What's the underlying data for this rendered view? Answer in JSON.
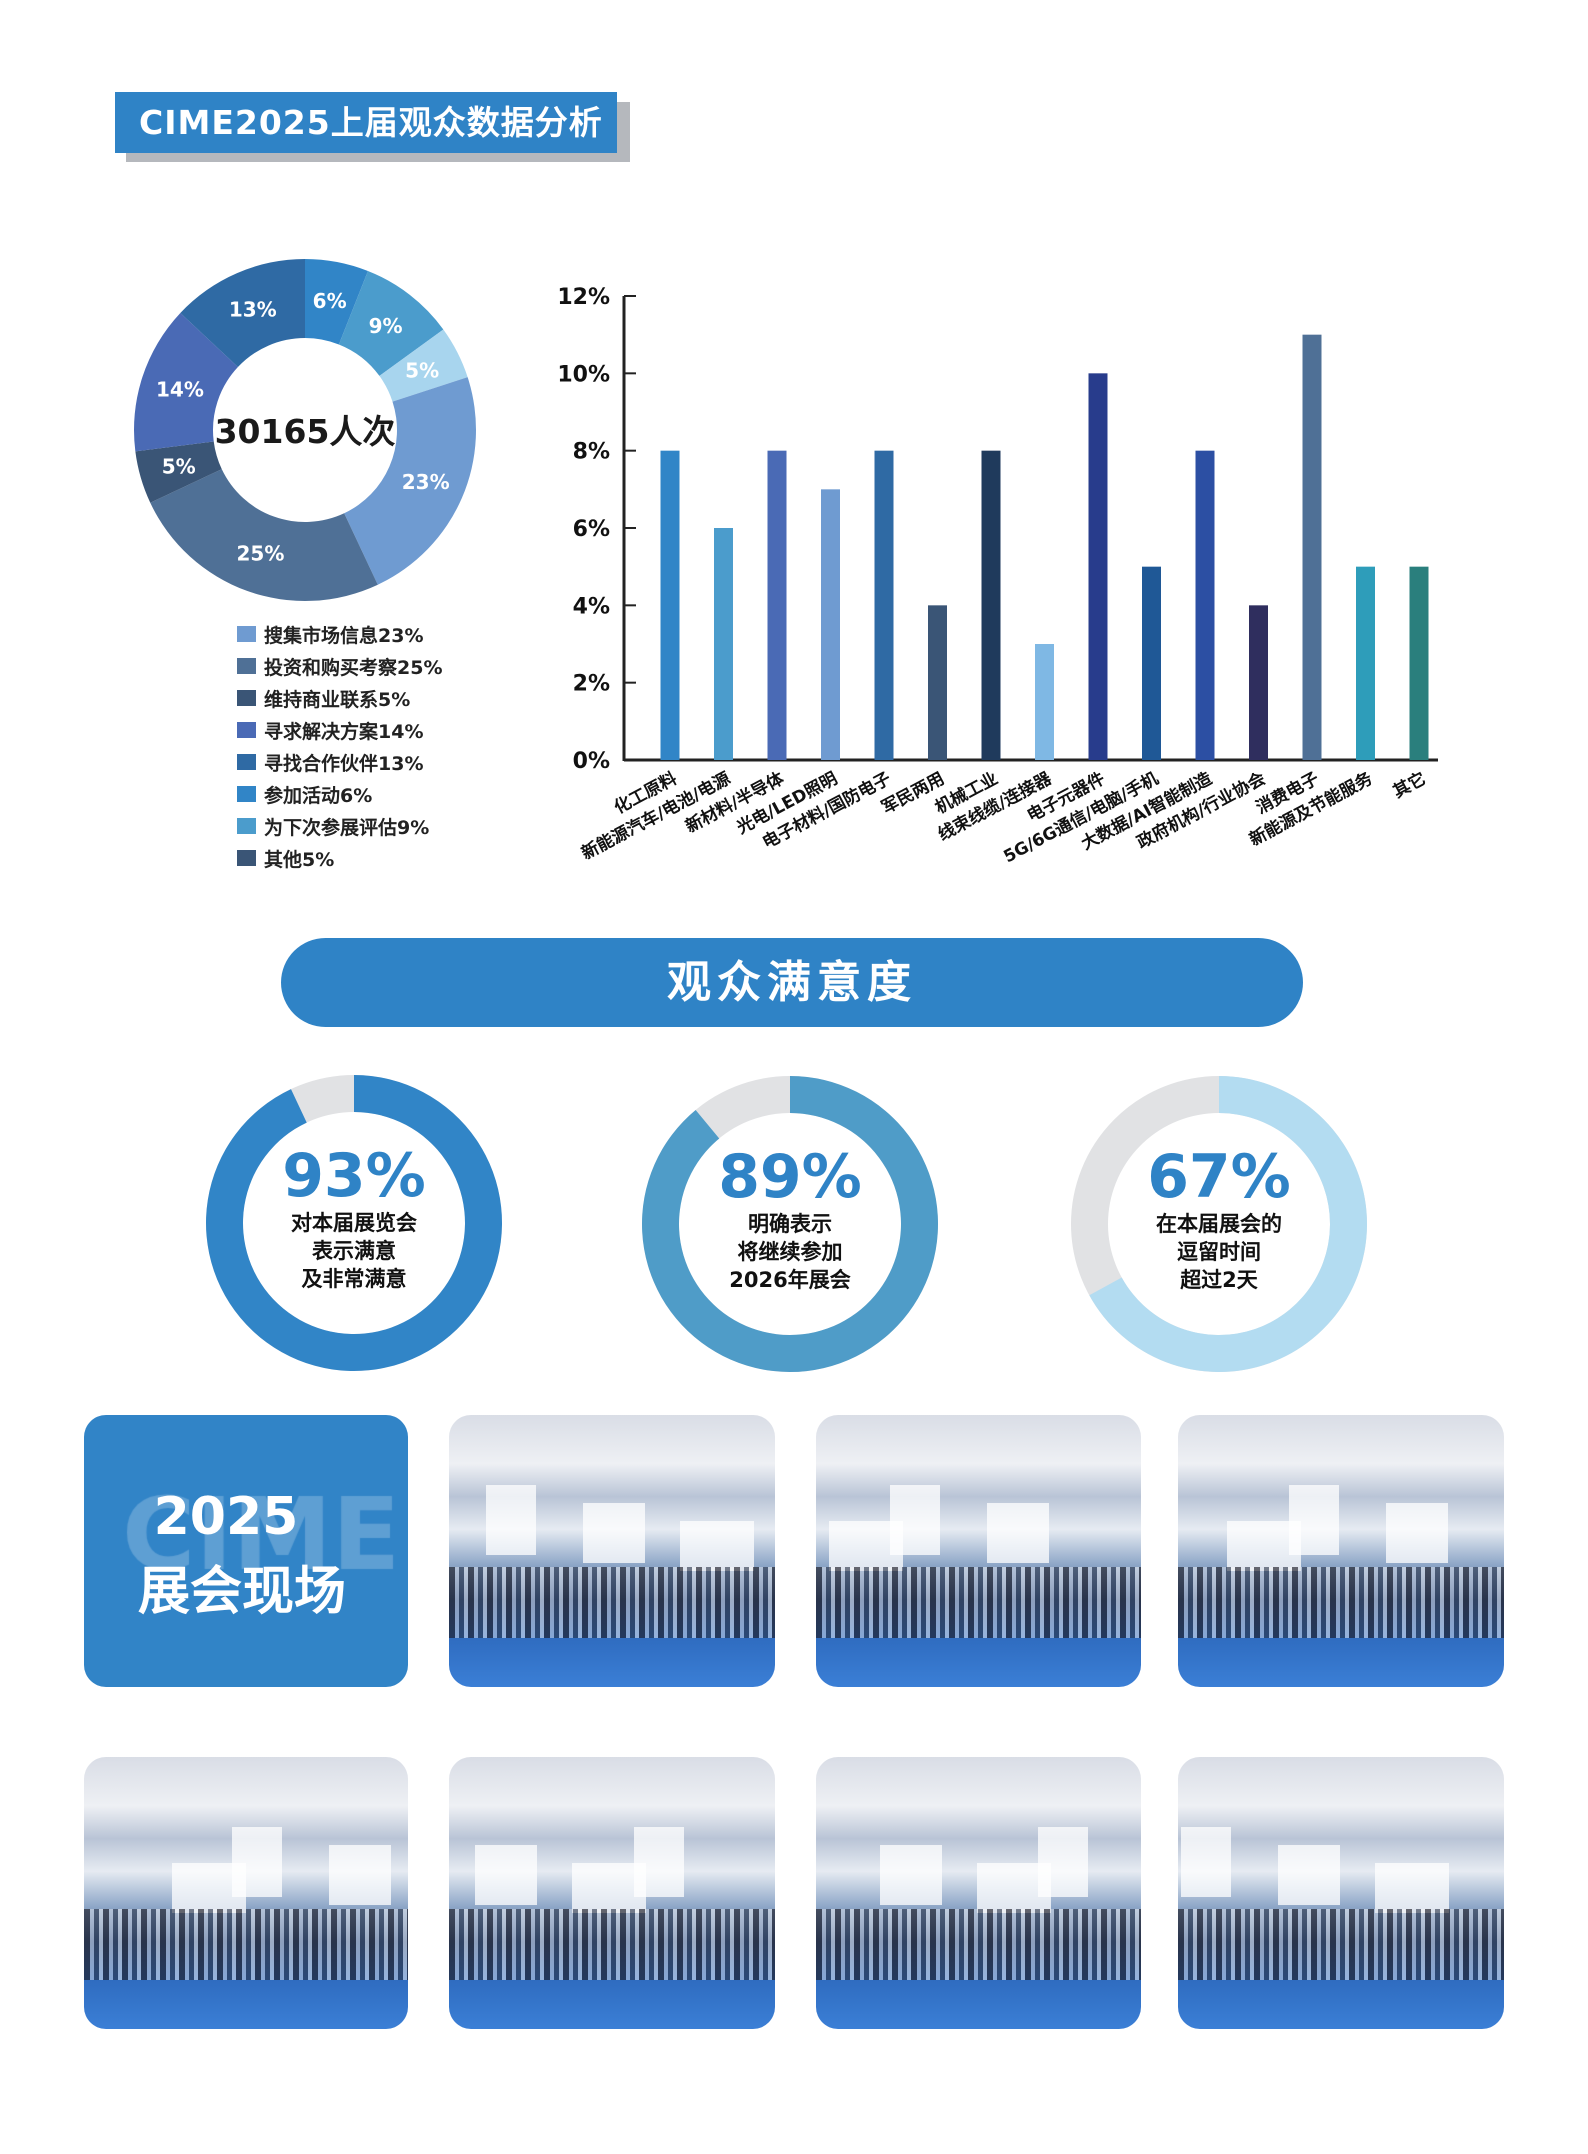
{
  "header": {
    "title": "CIME2025上届观众数据分析"
  },
  "chart_data": [
    {
      "type": "pie",
      "variant": "donut",
      "center_label": "30165人次",
      "slices": [
        {
          "label": "参加活动",
          "value": 6,
          "display": "6%",
          "color": "#3185c7"
        },
        {
          "label": "为下次参展评估",
          "value": 9,
          "display": "9%",
          "color": "#4b9ccc"
        },
        {
          "label": "其他",
          "value": 5,
          "display": "5%",
          "color": "#a8d5ee"
        },
        {
          "label": "搜集市场信息",
          "value": 23,
          "display": "23%",
          "color": "#6f9bd1"
        },
        {
          "label": "投资和购买考察",
          "value": 25,
          "display": "25%",
          "color": "#4f7096"
        },
        {
          "label": "维持商业联系",
          "value": 5,
          "display": "5%",
          "color": "#3a5576"
        },
        {
          "label": "寻求解决方案",
          "value": 14,
          "display": "14%",
          "color": "#4a6ab5"
        },
        {
          "label": "寻找合作伙伴",
          "value": 13,
          "display": "13%",
          "color": "#2f6aa4"
        }
      ],
      "legend": {
        "placement": "bottom",
        "items": [
          {
            "label": "搜集市场信息23%",
            "color": "#6f9bd1"
          },
          {
            "label": "投资和购买考察25%",
            "color": "#4f7096"
          },
          {
            "label": "维持商业联系5%",
            "color": "#3a5576"
          },
          {
            "label": "寻求解决方案14%",
            "color": "#4a6ab5"
          },
          {
            "label": "寻找合作伙伴13%",
            "color": "#2f6aa4"
          },
          {
            "label": "参加活动6%",
            "color": "#3185c7"
          },
          {
            "label": "为下次参展评估9%",
            "color": "#4b9ccc"
          },
          {
            "label": "其他5%",
            "color": "#3a5576"
          }
        ]
      }
    },
    {
      "type": "bar",
      "categories": [
        "化工原料",
        "新能源汽车/电池/电源",
        "新材料/半导体",
        "光电/LED照明",
        "电子材料/国防电子",
        "军民两用",
        "机械工业",
        "线束线缆/连接器",
        "电子元器件",
        "5G/6G通信/电脑/手机",
        "大数据/AI智能制造",
        "政府机构/行业协会",
        "消费电子",
        "新能源及节能服务",
        "其它"
      ],
      "values": [
        8,
        6,
        8,
        7,
        8,
        4,
        8,
        3,
        10,
        5,
        8,
        4,
        11,
        5,
        5
      ],
      "colors": [
        "#3185c7",
        "#4b9ccc",
        "#4a6ab5",
        "#6f9bd1",
        "#2f6aa4",
        "#3a5576",
        "#1f3a5c",
        "#7fb8e4",
        "#283c8c",
        "#1f5896",
        "#2c4fa3",
        "#2f2e5e",
        "#4f7096",
        "#2e9dba",
        "#2a7f7d"
      ],
      "ylim": [
        0,
        12
      ],
      "yticks": [
        "0%",
        "2%",
        "4%",
        "6%",
        "8%",
        "10%",
        "12%"
      ],
      "grid": false
    }
  ],
  "satisfaction": {
    "banner": "观众满意度",
    "track_color": "#e1e2e4",
    "rings": [
      {
        "percent": 93,
        "value": "93%",
        "lines": [
          "对本届展览会",
          "表示满意",
          "及非常满意"
        ],
        "color": "#3185c7"
      },
      {
        "percent": 89,
        "value": "89%",
        "lines": [
          "明确表示",
          "将继续参加",
          "2026年展会"
        ],
        "color": "#4f9cc8"
      },
      {
        "percent": 67,
        "value": "67%",
        "lines": [
          "在本届展会的",
          "逗留时间",
          "超过2天"
        ],
        "color": "#b3dcf1"
      }
    ]
  },
  "live": {
    "watermark": "CIME",
    "year": "2025",
    "title": "展会现场"
  }
}
